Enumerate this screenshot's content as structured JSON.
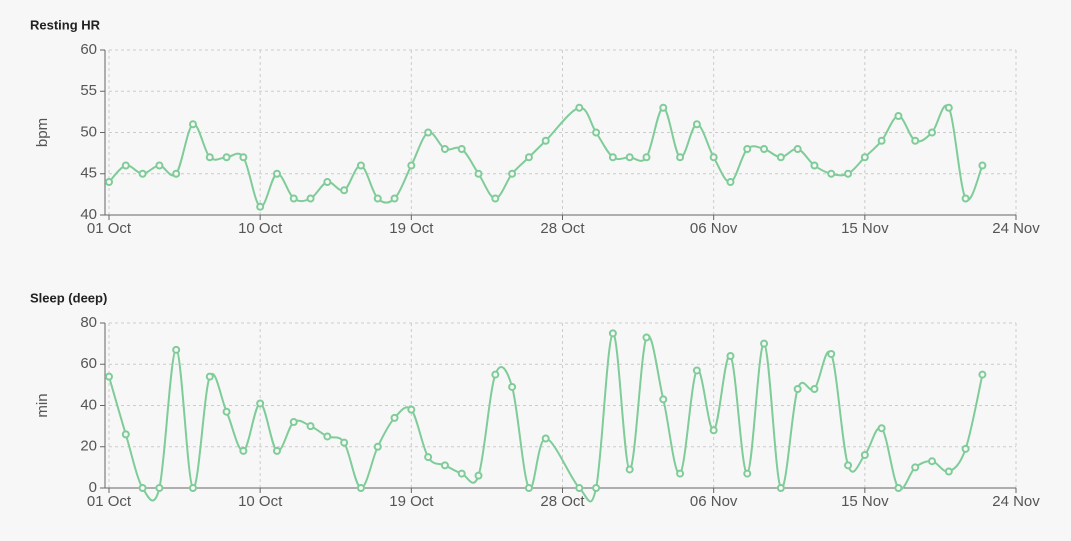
{
  "chart_data": [
    {
      "type": "line",
      "title": "Resting HR",
      "y_label": "bpm",
      "x": [
        "01 Oct",
        "02 Oct",
        "03 Oct",
        "04 Oct",
        "05 Oct",
        "06 Oct",
        "07 Oct",
        "08 Oct",
        "09 Oct",
        "10 Oct",
        "11 Oct",
        "12 Oct",
        "13 Oct",
        "14 Oct",
        "15 Oct",
        "16 Oct",
        "17 Oct",
        "18 Oct",
        "19 Oct",
        "20 Oct",
        "21 Oct",
        "22 Oct",
        "23 Oct",
        "24 Oct",
        "25 Oct",
        "26 Oct",
        "27 Oct",
        "29 Oct",
        "30 Oct",
        "31 Oct",
        "01 Nov",
        "02 Nov",
        "03 Nov",
        "04 Nov",
        "05 Nov",
        "06 Nov",
        "07 Nov",
        "08 Nov",
        "09 Nov",
        "10 Nov",
        "11 Nov",
        "12 Nov",
        "13 Nov",
        "14 Nov",
        "15 Nov",
        "16 Nov",
        "17 Nov",
        "18 Nov",
        "19 Nov",
        "20 Nov",
        "21 Nov",
        "22 Nov"
      ],
      "values": [
        44,
        46,
        45,
        46,
        45,
        51,
        47,
        47,
        47,
        41,
        45,
        42,
        42,
        44,
        43,
        46,
        42,
        42,
        46,
        50,
        48,
        48,
        45,
        42,
        45,
        47,
        49,
        53,
        50,
        47,
        47,
        47,
        53,
        47,
        51,
        47,
        44,
        48,
        48,
        47,
        48,
        46,
        45,
        45,
        47,
        49,
        52,
        49,
        50,
        53,
        42,
        46
      ],
      "color": "#7fcc99",
      "xlim": [
        "01 Oct",
        "24 Nov"
      ],
      "xticks": [
        "01 Oct",
        "10 Oct",
        "19 Oct",
        "28 Oct",
        "06 Nov",
        "15 Nov",
        "24 Nov"
      ],
      "ylim": [
        40,
        60
      ],
      "yticks": [
        40,
        45,
        50,
        55,
        60
      ],
      "grid": true
    },
    {
      "type": "line",
      "title": "Sleep (deep)",
      "y_label": "min",
      "x": [
        "01 Oct",
        "02 Oct",
        "03 Oct",
        "04 Oct",
        "05 Oct",
        "06 Oct",
        "07 Oct",
        "08 Oct",
        "09 Oct",
        "10 Oct",
        "11 Oct",
        "12 Oct",
        "13 Oct",
        "14 Oct",
        "15 Oct",
        "16 Oct",
        "17 Oct",
        "18 Oct",
        "19 Oct",
        "20 Oct",
        "21 Oct",
        "22 Oct",
        "23 Oct",
        "24 Oct",
        "25 Oct",
        "26 Oct",
        "27 Oct",
        "29 Oct",
        "30 Oct",
        "31 Oct",
        "01 Nov",
        "02 Nov",
        "03 Nov",
        "04 Nov",
        "05 Nov",
        "06 Nov",
        "07 Nov",
        "08 Nov",
        "09 Nov",
        "10 Nov",
        "11 Nov",
        "12 Nov",
        "13 Nov",
        "14 Nov",
        "15 Nov",
        "16 Nov",
        "17 Nov",
        "18 Nov",
        "19 Nov",
        "20 Nov",
        "21 Nov",
        "22 Nov"
      ],
      "values": [
        54,
        26,
        0,
        0,
        67,
        0,
        54,
        37,
        18,
        41,
        18,
        32,
        30,
        25,
        22,
        0,
        20,
        34,
        38,
        15,
        11,
        7,
        6,
        55,
        49,
        0,
        24,
        0,
        0,
        75,
        9,
        73,
        43,
        7,
        57,
        28,
        64,
        7,
        70,
        0,
        48,
        48,
        65,
        11,
        16,
        29,
        0,
        10,
        13,
        8,
        19,
        55
      ],
      "color": "#7fcc99",
      "xlim": [
        "01 Oct",
        "24 Nov"
      ],
      "xticks": [
        "01 Oct",
        "10 Oct",
        "19 Oct",
        "28 Oct",
        "06 Nov",
        "15 Nov",
        "24 Nov"
      ],
      "ylim": [
        0,
        80
      ],
      "yticks": [
        0,
        20,
        40,
        60,
        80
      ],
      "grid": true
    }
  ]
}
